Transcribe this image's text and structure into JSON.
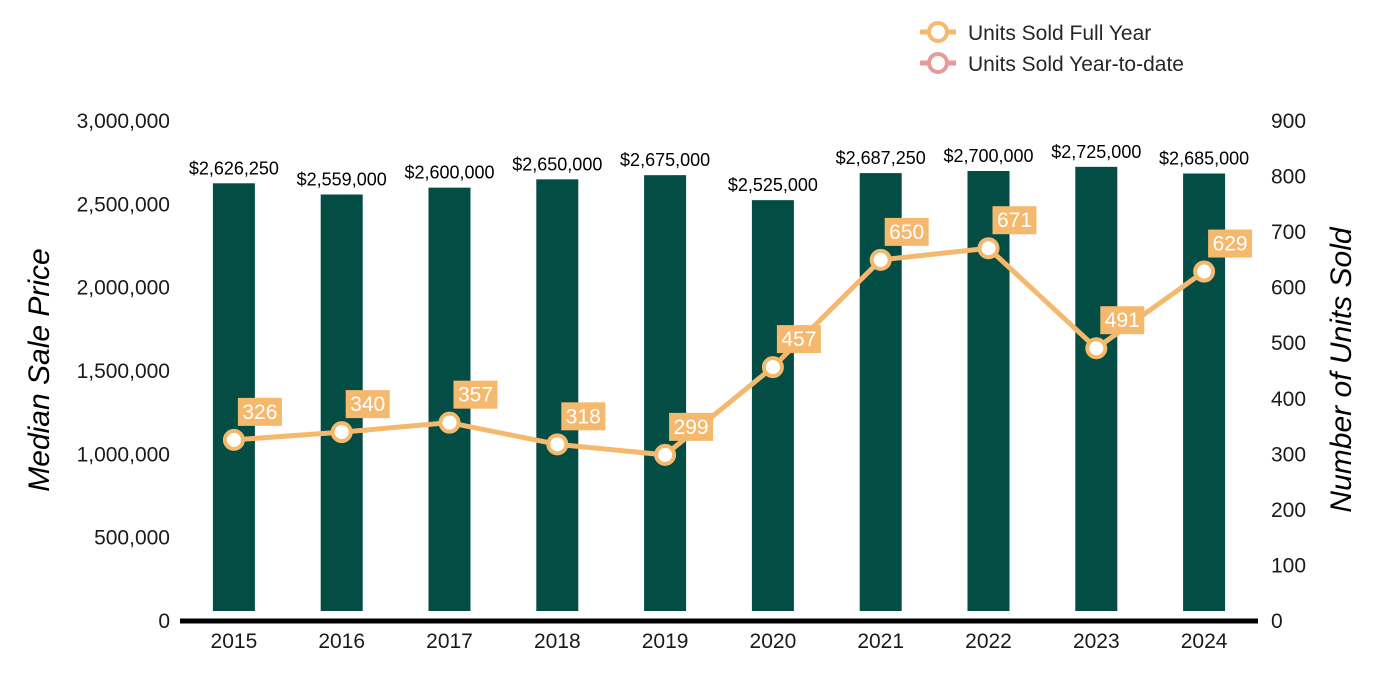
{
  "chart_data": {
    "type": "bar+line",
    "categories": [
      "2015",
      "2016",
      "2017",
      "2018",
      "2019",
      "2020",
      "2021",
      "2022",
      "2023",
      "2024"
    ],
    "bar_series": {
      "name": "Median Sale Price",
      "values": [
        2626250,
        2559000,
        2600000,
        2650000,
        2675000,
        2525000,
        2687250,
        2700000,
        2725000,
        2685000
      ],
      "labels": [
        "$2,626,250",
        "$2,559,000",
        "$2,600,000",
        "$2,650,000",
        "$2,675,000",
        "$2,525,000",
        "$2,687,250",
        "$2,700,000",
        "$2,725,000",
        "$2,685,000"
      ],
      "color": "#034d45"
    },
    "line_series": [
      {
        "name": "Units Sold Full Year",
        "values": [
          326,
          340,
          357,
          318,
          299,
          457,
          650,
          671,
          491,
          629
        ],
        "labels": [
          "326",
          "340",
          "357",
          "318",
          "299",
          "457",
          "650",
          "671",
          "491",
          "629"
        ],
        "color": "#f5b96e"
      },
      {
        "name": "Units Sold Year-to-date",
        "values": [],
        "labels": [],
        "color": "#e69a9a"
      }
    ],
    "y_left": {
      "label": "Median Sale Price",
      "range": [
        0,
        3000000
      ],
      "ticks": [
        0,
        500000,
        1000000,
        1500000,
        2000000,
        2500000,
        3000000
      ],
      "tick_labels": [
        "0",
        "500,000",
        "1,000,000",
        "1,500,000",
        "2,000,000",
        "2,500,000",
        "3,000,000"
      ]
    },
    "y_right": {
      "label": "Number of Units Sold",
      "range": [
        0,
        900
      ],
      "ticks": [
        0,
        100,
        200,
        300,
        400,
        500,
        600,
        700,
        800,
        900
      ],
      "tick_labels": [
        "0",
        "100",
        "200",
        "300",
        "400",
        "500",
        "600",
        "700",
        "800",
        "900"
      ]
    },
    "legend": {
      "position": "top-right",
      "entries": [
        "Units Sold Full Year",
        "Units Sold Year-to-date"
      ]
    },
    "grid": false
  }
}
